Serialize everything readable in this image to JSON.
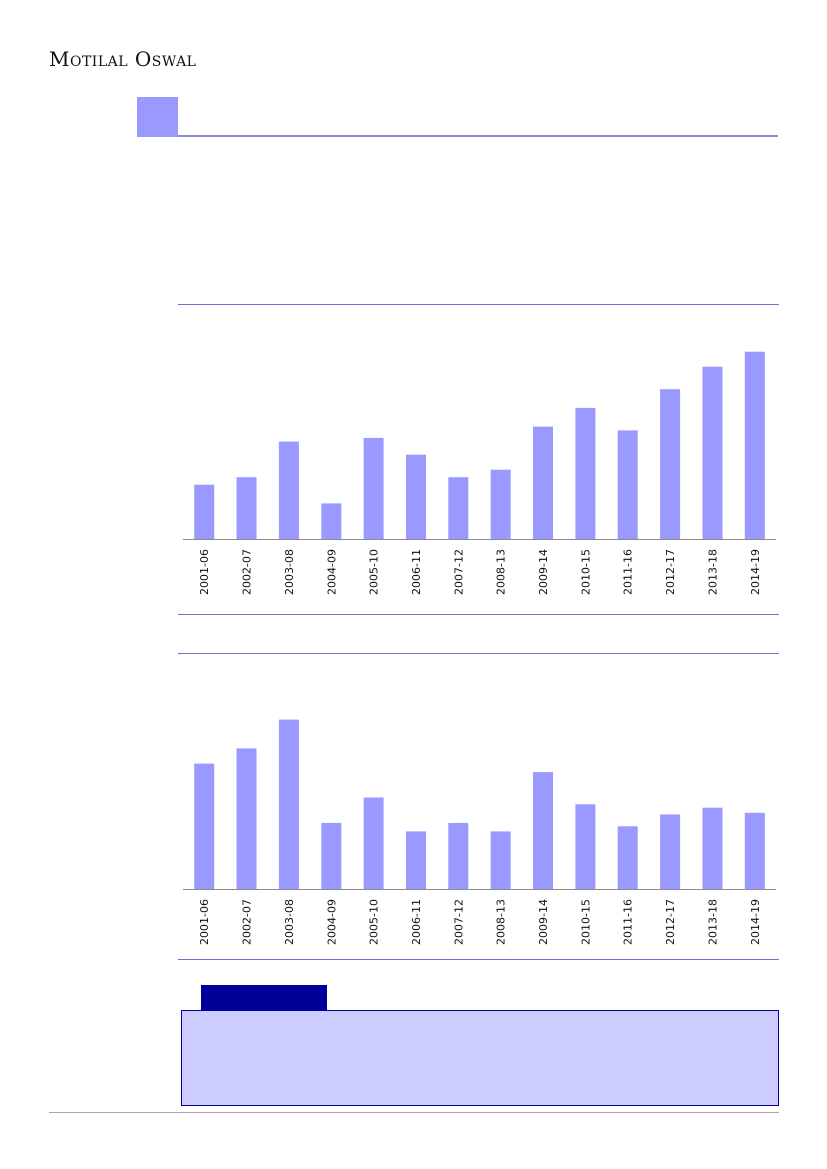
{
  "header": {
    "brand": "Motilal Oswal"
  },
  "colors": {
    "accent": "#9999ff",
    "rule": "#6f6fd8",
    "tab": "#000099",
    "box": "#ccccff"
  },
  "chart_data": [
    {
      "type": "bar",
      "categories": [
        "2001-06",
        "2002-07",
        "2003-08",
        "2004-09",
        "2005-10",
        "2006-11",
        "2007-12",
        "2008-13",
        "2009-14",
        "2010-15",
        "2011-16",
        "2012-17",
        "2013-18",
        "2014-19"
      ],
      "values": [
        29,
        33,
        52,
        19,
        54,
        45,
        33,
        37,
        60,
        70,
        58,
        80,
        92,
        100
      ],
      "ylim": [
        0,
        110
      ]
    },
    {
      "type": "bar",
      "categories": [
        "2001-06",
        "2002-07",
        "2003-08",
        "2004-09",
        "2005-10",
        "2006-11",
        "2007-12",
        "2008-13",
        "2009-14",
        "2010-15",
        "2011-16",
        "2012-17",
        "2013-18",
        "2014-19"
      ],
      "values": [
        74,
        83,
        100,
        39,
        54,
        34,
        39,
        34,
        69,
        50,
        37,
        44,
        48,
        45
      ],
      "ylim": [
        0,
        108
      ]
    }
  ]
}
